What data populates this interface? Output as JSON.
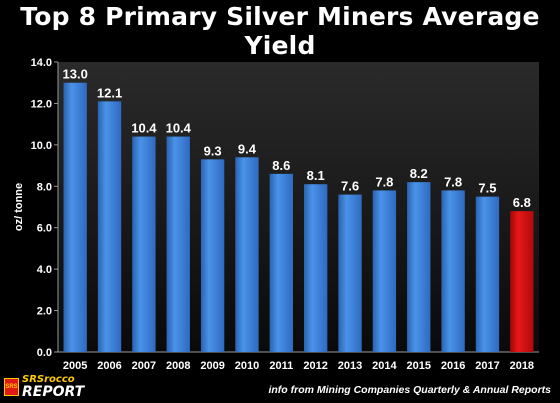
{
  "chart_data": {
    "type": "bar",
    "title": "Top 8 Primary Silver Miners Average Yield",
    "ylabel": "oz/ tonne",
    "xlabel": "",
    "categories": [
      "2005",
      "2006",
      "2007",
      "2008",
      "2009",
      "2010",
      "2011",
      "2012",
      "2013",
      "2014",
      "2015",
      "2016",
      "2017",
      "2018"
    ],
    "values": [
      13.0,
      12.1,
      10.4,
      10.4,
      9.3,
      9.4,
      8.6,
      8.1,
      7.6,
      7.8,
      8.2,
      7.8,
      7.5,
      6.8
    ],
    "value_labels": [
      "13.0",
      "12.1",
      "10.4",
      "10.4",
      "9.3",
      "9.4",
      "8.6",
      "8.1",
      "7.6",
      "7.8",
      "8.2",
      "7.8",
      "7.5",
      "6.8"
    ],
    "ylim": [
      0,
      14
    ],
    "yticks": [
      "0.0",
      "2.0",
      "4.0",
      "6.0",
      "8.0",
      "10.0",
      "12.0",
      "14.0"
    ],
    "grid": false,
    "colors": {
      "bar": "#3b7fd4",
      "highlight_bar": "#d01010",
      "background": "#000000",
      "text": "#ffffff"
    },
    "highlight_category": "2018"
  },
  "logo": {
    "mark": "SRS",
    "line1": "SRSrocco",
    "line2": "REPORT"
  },
  "source_note": "info from Mining Companies Quarterly & Annual Reports"
}
